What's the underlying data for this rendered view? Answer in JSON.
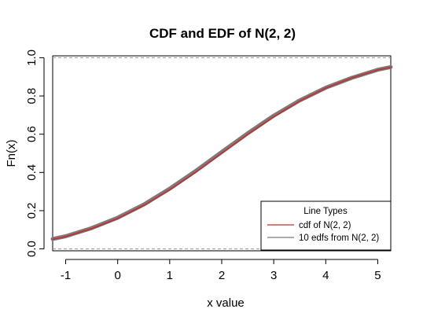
{
  "chart_data": {
    "type": "line",
    "title": "CDF and EDF of N(2, 2)",
    "xlabel": "x value",
    "ylabel": "Fn(x)",
    "xlim": [
      -1.25,
      5.25
    ],
    "ylim": [
      -0.01,
      1.01
    ],
    "xticks": [
      -1,
      0,
      1,
      2,
      3,
      4,
      5
    ],
    "yticks": [
      0.0,
      0.2,
      0.4,
      0.6,
      0.8,
      1.0
    ],
    "xtick_labels": [
      "-1",
      "0",
      "1",
      "2",
      "3",
      "4",
      "5"
    ],
    "ytick_labels": [
      "0.0",
      "0.2",
      "0.4",
      "0.6",
      "0.8",
      "1.0"
    ],
    "reference_lines": [
      0,
      1
    ],
    "series": [
      {
        "name": "cdf of N(2, 2)",
        "color": "#cc2b2b",
        "x": [
          -1.25,
          -1.0,
          -0.5,
          0.0,
          0.5,
          1.0,
          1.5,
          2.0,
          2.5,
          3.0,
          3.5,
          4.0,
          4.5,
          5.0,
          5.25
        ],
        "y": [
          0.05,
          0.064,
          0.106,
          0.159,
          0.227,
          0.309,
          0.401,
          0.5,
          0.599,
          0.691,
          0.773,
          0.841,
          0.894,
          0.936,
          0.95
        ]
      },
      {
        "name": "10 edfs from N(2, 2)",
        "color": "#7a7a7a",
        "x": [
          -1.25,
          -1.0,
          -0.5,
          0.0,
          0.5,
          1.0,
          1.5,
          2.0,
          2.5,
          3.0,
          3.5,
          4.0,
          4.5,
          5.0,
          5.25
        ],
        "y": [
          0.052,
          0.066,
          0.109,
          0.163,
          0.232,
          0.315,
          0.408,
          0.507,
          0.605,
          0.697,
          0.777,
          0.843,
          0.895,
          0.937,
          0.951
        ]
      }
    ],
    "legend": {
      "title": "Line Types",
      "position": "bottom-right",
      "entries": [
        "cdf of N(2, 2)",
        "10 edfs from N(2, 2)"
      ]
    }
  }
}
